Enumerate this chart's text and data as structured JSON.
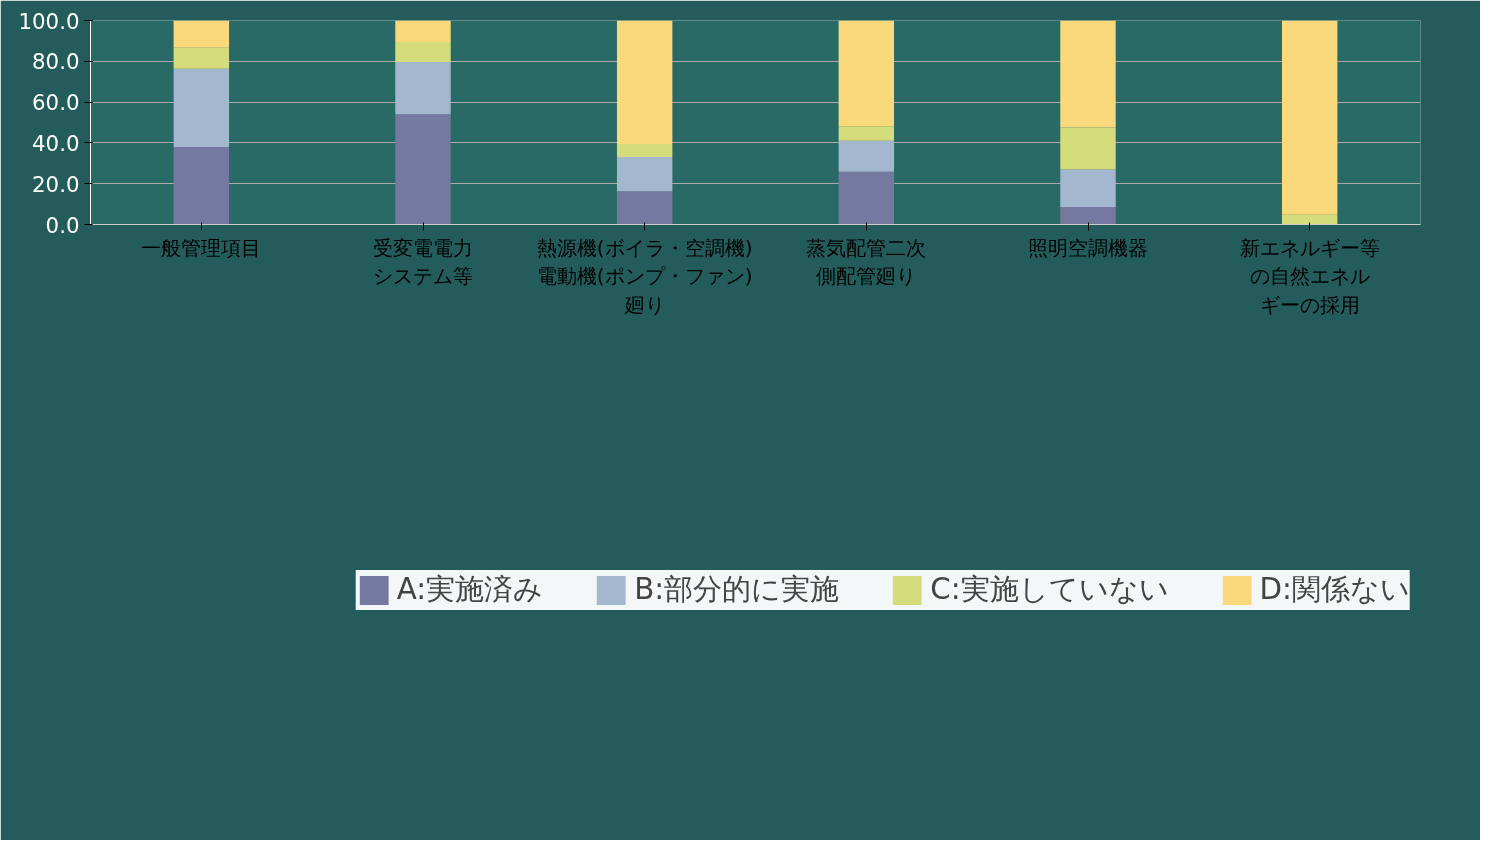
{
  "chart_data": {
    "type": "bar",
    "stacked": true,
    "categories": [
      "一般管理項目",
      "受変電電力システム等",
      "熱源機(ボイラ・空調機)\n電動機(ポンプ・ファン)\n廻り",
      "蒸気配管二次側配管廻り",
      "照明空調機器",
      "新エネルギー等の自然エネルギーの採用"
    ],
    "series": [
      {
        "name": "A:実施済み",
        "color": "#7579a0",
        "values": [
          38.0,
          54.1,
          16.3,
          25.8,
          8.6,
          0
        ]
      },
      {
        "name": "B:部分的に実施",
        "color": "#a3b8cf",
        "values": [
          38.3,
          25.6,
          16.8,
          15.3,
          18.4,
          0
        ]
      },
      {
        "name": "C:実施していない",
        "color": "#d4dc7c",
        "values": [
          10.3,
          9.8,
          6.3,
          7.1,
          20.6,
          4.8
        ]
      },
      {
        "name": "D:関係ない",
        "color": "#fad87c",
        "values": [
          13.4,
          10.5,
          60.6,
          51.8,
          52.4,
          95.2
        ]
      }
    ],
    "ylim": [
      0,
      100
    ],
    "yticks": [
      {
        "value": 0,
        "label": "0.0"
      },
      {
        "value": 20,
        "label": "20.0"
      },
      {
        "value": 40,
        "label": "40.0"
      },
      {
        "value": 60,
        "label": "60.0"
      },
      {
        "value": 80,
        "label": "80.0"
      },
      {
        "value": 100,
        "label": "100.0"
      }
    ],
    "grid": "y",
    "legend": "bottom"
  }
}
